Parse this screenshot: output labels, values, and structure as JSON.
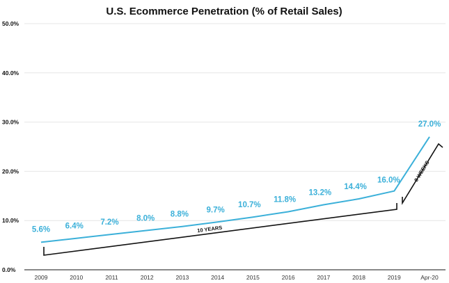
{
  "chart_data": {
    "type": "line",
    "title": "U.S. Ecommerce Penetration (% of Retail Sales)",
    "xlabel": "",
    "ylabel": "",
    "categories": [
      "2009",
      "2010",
      "2011",
      "2012",
      "2013",
      "2014",
      "2015",
      "2016",
      "2017",
      "2018",
      "2019",
      "Apr-20"
    ],
    "series": [
      {
        "name": "Ecommerce penetration",
        "values": [
          5.6,
          6.4,
          7.2,
          8.0,
          8.8,
          9.7,
          10.7,
          11.8,
          13.2,
          14.4,
          16.0,
          27.0
        ]
      }
    ],
    "data_labels": [
      "5.6%",
      "6.4%",
      "7.2%",
      "8.0%",
      "8.8%",
      "9.7%",
      "10.7%",
      "11.8%",
      "13.2%",
      "14.4%",
      "16.0%",
      "27.0%"
    ],
    "yticks": [
      0,
      10,
      20,
      30,
      40,
      50
    ],
    "ytick_labels": [
      "0.0%",
      "10.0%",
      "20.0%",
      "30.0%",
      "40.0%",
      "50.0%"
    ],
    "ylim": [
      0,
      50
    ],
    "grid": true,
    "annotations": [
      {
        "text": "10 YEARS",
        "from": "2009",
        "to": "2019"
      },
      {
        "text": "8 WEEKS",
        "from": "2019",
        "to": "Apr-20"
      }
    ],
    "colors": {
      "line": "#3bb0d9",
      "label": "#3bb0d9",
      "text": "#111111",
      "grid": "#e6e6e6"
    }
  }
}
